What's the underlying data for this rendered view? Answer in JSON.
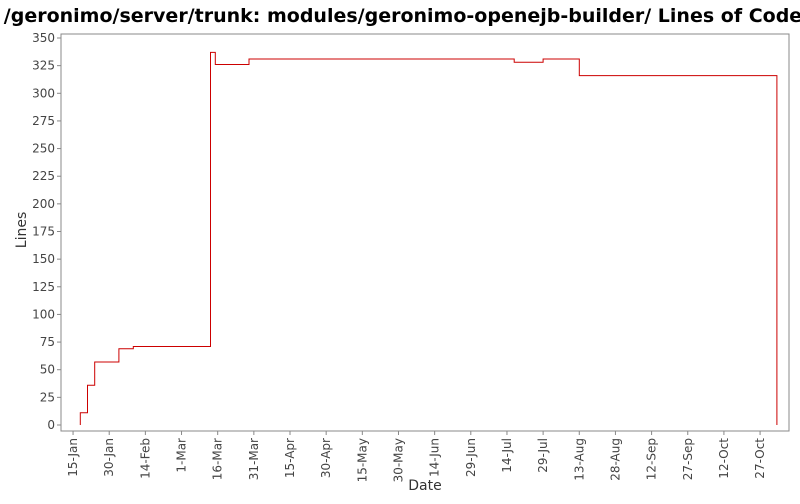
{
  "chart_data": {
    "type": "line",
    "title": "/geronimo/server/trunk: modules/geronimo-openejb-builder/ Lines of Code",
    "xlabel": "Date",
    "ylabel": "Lines",
    "ylim": [
      0,
      355
    ],
    "y_ticks": [
      0,
      25,
      50,
      75,
      100,
      125,
      150,
      175,
      200,
      225,
      250,
      275,
      300,
      325,
      350
    ],
    "x_range": [
      "2006-01-10",
      "2006-11-08"
    ],
    "x_ticks": [
      {
        "label": "15-Jan",
        "date": "2006-01-15"
      },
      {
        "label": "30-Jan",
        "date": "2006-01-30"
      },
      {
        "label": "14-Feb",
        "date": "2006-02-14"
      },
      {
        "label": "1-Mar",
        "date": "2006-03-01"
      },
      {
        "label": "16-Mar",
        "date": "2006-03-16"
      },
      {
        "label": "31-Mar",
        "date": "2006-03-31"
      },
      {
        "label": "15-Apr",
        "date": "2006-04-15"
      },
      {
        "label": "30-Apr",
        "date": "2006-04-30"
      },
      {
        "label": "15-May",
        "date": "2006-05-15"
      },
      {
        "label": "30-May",
        "date": "2006-05-30"
      },
      {
        "label": "14-Jun",
        "date": "2006-06-14"
      },
      {
        "label": "29-Jun",
        "date": "2006-06-29"
      },
      {
        "label": "14-Jul",
        "date": "2006-07-14"
      },
      {
        "label": "29-Jul",
        "date": "2006-07-29"
      },
      {
        "label": "13-Aug",
        "date": "2006-08-13"
      },
      {
        "label": "28-Aug",
        "date": "2006-08-28"
      },
      {
        "label": "12-Sep",
        "date": "2006-09-12"
      },
      {
        "label": "27-Sep",
        "date": "2006-09-27"
      },
      {
        "label": "12-Oct",
        "date": "2006-10-12"
      },
      {
        "label": "27-Oct",
        "date": "2006-10-27"
      }
    ],
    "grid": false,
    "legend": "none",
    "line_color": "#cc0000",
    "step": true,
    "series": [
      {
        "points": [
          {
            "x": "2006-01-18",
            "y": 0
          },
          {
            "x": "2006-01-18",
            "y": 11
          },
          {
            "x": "2006-01-21",
            "y": 11
          },
          {
            "x": "2006-01-21",
            "y": 36
          },
          {
            "x": "2006-01-24",
            "y": 36
          },
          {
            "x": "2006-01-24",
            "y": 57
          },
          {
            "x": "2006-02-03",
            "y": 57
          },
          {
            "x": "2006-02-03",
            "y": 69
          },
          {
            "x": "2006-02-09",
            "y": 69
          },
          {
            "x": "2006-02-09",
            "y": 71
          },
          {
            "x": "2006-03-13",
            "y": 71
          },
          {
            "x": "2006-03-13",
            "y": 337
          },
          {
            "x": "2006-03-15",
            "y": 337
          },
          {
            "x": "2006-03-15",
            "y": 326
          },
          {
            "x": "2006-03-29",
            "y": 326
          },
          {
            "x": "2006-03-29",
            "y": 331
          },
          {
            "x": "2006-07-17",
            "y": 331
          },
          {
            "x": "2006-07-17",
            "y": 328
          },
          {
            "x": "2006-07-29",
            "y": 328
          },
          {
            "x": "2006-07-29",
            "y": 331
          },
          {
            "x": "2006-08-13",
            "y": 331
          },
          {
            "x": "2006-08-13",
            "y": 316
          },
          {
            "x": "2006-11-03",
            "y": 316
          },
          {
            "x": "2006-11-03",
            "y": 0
          }
        ]
      }
    ]
  }
}
